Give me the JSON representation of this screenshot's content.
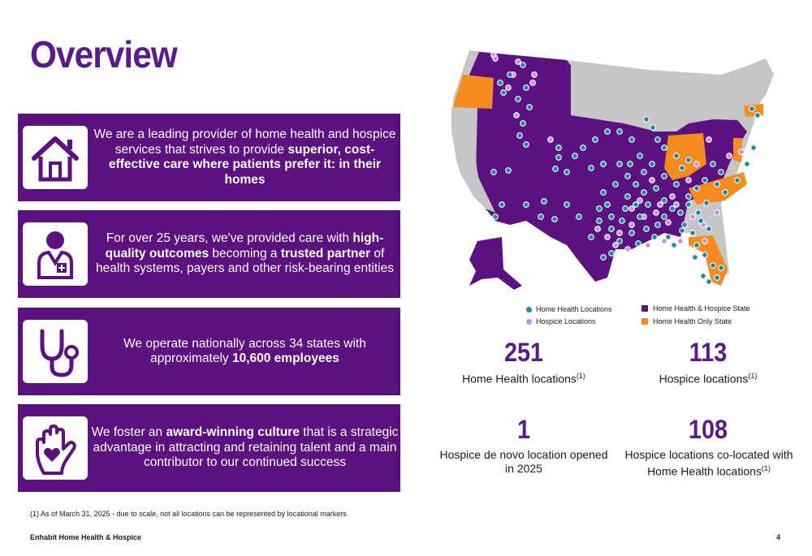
{
  "title": "Overview",
  "cards": [
    {
      "icon": "house-icon",
      "pre": "We are a leading provider of home health and hospice services that strives to provide ",
      "bold": "superior, cost-effective care where patients prefer it: in their homes",
      "mid": "",
      "bold2": "",
      "post": ""
    },
    {
      "icon": "doctor-icon",
      "pre": "For over 25 years, we've provided care with ",
      "bold": "high-quality outcomes",
      "mid": " becoming a ",
      "bold2": "trusted partner",
      "post": " of health systems, payers and other risk-bearing entities"
    },
    {
      "icon": "stethoscope-icon",
      "pre": "We operate nationally across 34 states with approximately ",
      "bold": "10,600 employees",
      "mid": "",
      "bold2": "",
      "post": ""
    },
    {
      "icon": "hand-heart-icon",
      "pre": "We foster an ",
      "bold": "award-winning culture",
      "mid": " that is a strategic advantage in attracting and retaining talent and a main contributor to our continued success",
      "bold2": "",
      "post": ""
    }
  ],
  "legend": {
    "home_health_locations": "Home Health Locations",
    "hospice_locations": "Hospice Locations",
    "hh_hospice_state": "Home Health & Hospice State",
    "hh_only_state": "Home Health Only State"
  },
  "colors": {
    "purple": "#5b1180",
    "orange": "#f68b1f",
    "gray": "#c6c6c6",
    "teal_dot": "#1a8aa0",
    "lilac_dot": "#c88ee6"
  },
  "stats": [
    {
      "value": "251",
      "label": "Home Health locations",
      "sup": "(1)"
    },
    {
      "value": "113",
      "label": "Hospice locations",
      "sup": "(1)"
    },
    {
      "value": "1",
      "label": "Hospice de novo location opened in 2025",
      "sup": ""
    },
    {
      "value": "108",
      "label": "Hospice locations co-located with Home Health locations",
      "sup": "(1)"
    }
  ],
  "footnote": "(1) As of March 31, 2025 - due to scale, not all locations can be represented by locational markers",
  "footer": "Enhabit Home Health & Hospice",
  "page_number": "4"
}
